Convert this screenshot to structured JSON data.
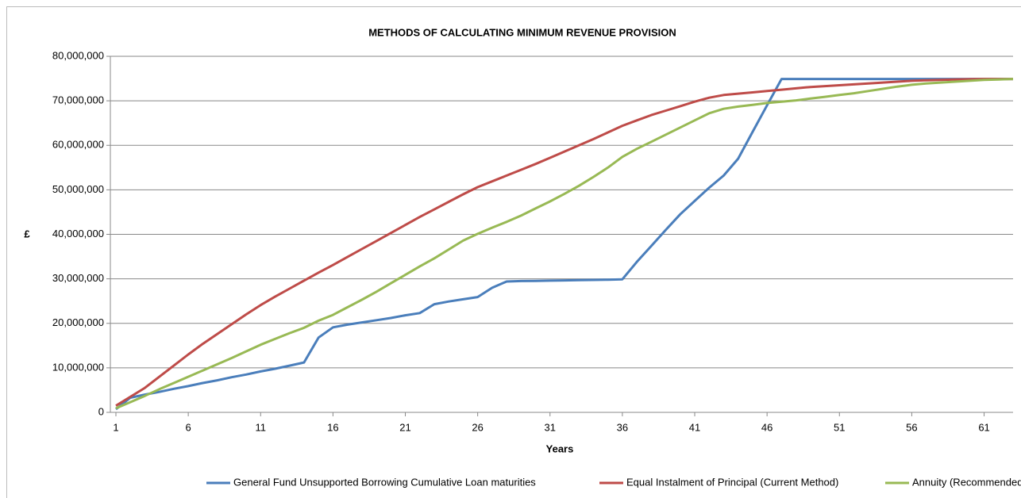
{
  "chart_data": {
    "type": "line",
    "title": "METHODS OF CALCULATING MINIMUM REVENUE PROVISION",
    "x_label": "Years",
    "y_label": "£",
    "x": [
      1,
      2,
      3,
      4,
      5,
      6,
      7,
      8,
      9,
      10,
      11,
      12,
      13,
      14,
      15,
      16,
      17,
      18,
      19,
      20,
      21,
      22,
      23,
      24,
      25,
      26,
      27,
      28,
      29,
      30,
      31,
      32,
      33,
      34,
      35,
      36,
      37,
      38,
      39,
      40,
      41,
      42,
      43,
      44,
      45,
      46,
      47,
      48,
      49,
      50,
      51,
      52,
      53,
      54,
      55,
      56,
      57,
      58,
      59,
      60,
      61,
      62,
      63
    ],
    "xlim": [
      1,
      63
    ],
    "xticks": [
      1,
      6,
      11,
      16,
      21,
      26,
      31,
      36,
      41,
      46,
      51,
      56,
      61
    ],
    "ylim": [
      0,
      80000000
    ],
    "yticks": [
      {
        "value": 0,
        "label": "0"
      },
      {
        "value": 10000000,
        "label": "10,000,000"
      },
      {
        "value": 20000000,
        "label": "20,000,000"
      },
      {
        "value": 30000000,
        "label": "30,000,000"
      },
      {
        "value": 40000000,
        "label": "40,000,000"
      },
      {
        "value": 50000000,
        "label": "50,000,000"
      },
      {
        "value": 60000000,
        "label": "60,000,000"
      },
      {
        "value": 70000000,
        "label": "70,000,000"
      },
      {
        "value": 80000000,
        "label": "80,000,000"
      }
    ],
    "grid": true,
    "legend": "bottom",
    "series": [
      {
        "name": "General Fund Unsupported Borrowing Cumulative Loan maturities",
        "color": "#4a7ebb",
        "values": [
          700000,
          3300000,
          4000000,
          4600000,
          5300000,
          5900000,
          6600000,
          7200000,
          7900000,
          8500000,
          9200000,
          9800000,
          10500000,
          11200000,
          16800000,
          19100000,
          19700000,
          20200000,
          20700000,
          21200000,
          21800000,
          22300000,
          24300000,
          24900000,
          25400000,
          25900000,
          28000000,
          29400000,
          29500000,
          29550000,
          29600000,
          29650000,
          29700000,
          29750000,
          29800000,
          29900000,
          33800000,
          37400000,
          41000000,
          44500000,
          47500000,
          50500000,
          53200000,
          57000000,
          63000000,
          69000000,
          74900000,
          74900000,
          74900000,
          74900000,
          74900000,
          74900000,
          74900000,
          74900000,
          74900000,
          74900000,
          74900000,
          74900000,
          74900000,
          74900000,
          74900000,
          74900000,
          74900000
        ]
      },
      {
        "name": "Equal Instalment of Principal (Current Method)",
        "color": "#be4b48",
        "values": [
          1500000,
          3500000,
          5500000,
          8000000,
          10500000,
          13000000,
          15400000,
          17600000,
          19800000,
          22000000,
          24100000,
          26000000,
          27800000,
          29600000,
          31400000,
          33100000,
          34900000,
          36700000,
          38500000,
          40300000,
          42100000,
          43900000,
          45600000,
          47300000,
          49000000,
          50600000,
          51900000,
          53200000,
          54500000,
          55800000,
          57200000,
          58600000,
          60000000,
          61400000,
          62900000,
          64400000,
          65600000,
          66800000,
          67800000,
          68800000,
          69800000,
          70700000,
          71300000,
          71600000,
          71900000,
          72200000,
          72500000,
          72800000,
          73100000,
          73300000,
          73500000,
          73700000,
          73900000,
          74100000,
          74300000,
          74500000,
          74600000,
          74700000,
          74800000,
          74850000,
          74900000,
          74900000,
          74900000
        ]
      },
      {
        "name": "Annuity (Recommended Method)",
        "color": "#98b954",
        "values": [
          900000,
          2300000,
          3700000,
          5200000,
          6600000,
          8000000,
          9400000,
          10800000,
          12200000,
          13700000,
          15200000,
          16500000,
          17800000,
          19000000,
          20600000,
          21900000,
          23600000,
          25300000,
          27100000,
          29000000,
          30900000,
          32800000,
          34600000,
          36600000,
          38600000,
          40100000,
          41500000,
          42800000,
          44200000,
          45800000,
          47400000,
          49100000,
          50900000,
          52900000,
          55000000,
          57400000,
          59200000,
          60800000,
          62400000,
          64000000,
          65600000,
          67200000,
          68200000,
          68700000,
          69100000,
          69500000,
          69800000,
          70100000,
          70500000,
          70900000,
          71300000,
          71700000,
          72200000,
          72700000,
          73200000,
          73600000,
          73900000,
          74100000,
          74300000,
          74500000,
          74700000,
          74800000,
          74900000
        ]
      }
    ]
  }
}
